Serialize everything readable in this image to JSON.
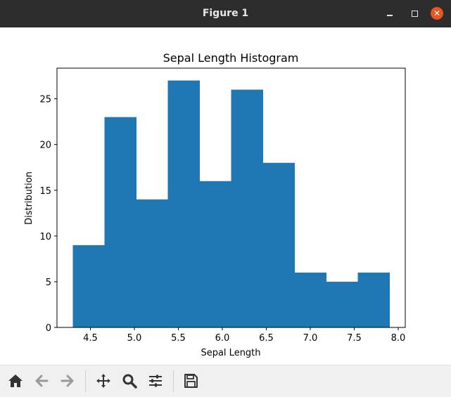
{
  "window": {
    "title": "Figure 1",
    "minimize_glyph": "",
    "close_glyph": "✕"
  },
  "toolbar": {
    "buttons": [
      {
        "name": "home-icon"
      },
      {
        "name": "back-arrow-icon"
      },
      {
        "name": "forward-arrow-icon"
      },
      {
        "name": "pan-icon"
      },
      {
        "name": "zoom-icon"
      },
      {
        "name": "configure-subplots-icon"
      },
      {
        "name": "save-icon"
      }
    ]
  },
  "colors": {
    "bar": "#1f77b4",
    "close_button": "#e95420"
  },
  "chart_data": {
    "type": "bar",
    "title": "Sepal Length Histogram",
    "xlabel": "Sepal Length",
    "ylabel": "Distribution",
    "bin_edges": [
      4.3,
      4.66,
      5.02,
      5.38,
      5.74,
      6.1,
      6.46,
      6.82,
      7.18,
      7.54,
      7.9
    ],
    "values": [
      9,
      23,
      14,
      27,
      16,
      26,
      18,
      6,
      5,
      6
    ],
    "xlim": [
      4.12,
      8.08
    ],
    "ylim": [
      0,
      28.35
    ],
    "xticks": [
      4.5,
      5.0,
      5.5,
      6.0,
      6.5,
      7.0,
      7.5,
      8.0
    ],
    "xtick_labels": [
      "4.5",
      "5.0",
      "5.5",
      "6.0",
      "6.5",
      "7.0",
      "7.5",
      "8.0"
    ],
    "yticks": [
      0,
      5,
      10,
      15,
      20,
      25
    ],
    "ytick_labels": [
      "0",
      "5",
      "10",
      "15",
      "20",
      "25"
    ],
    "grid": false,
    "legend": "none"
  }
}
